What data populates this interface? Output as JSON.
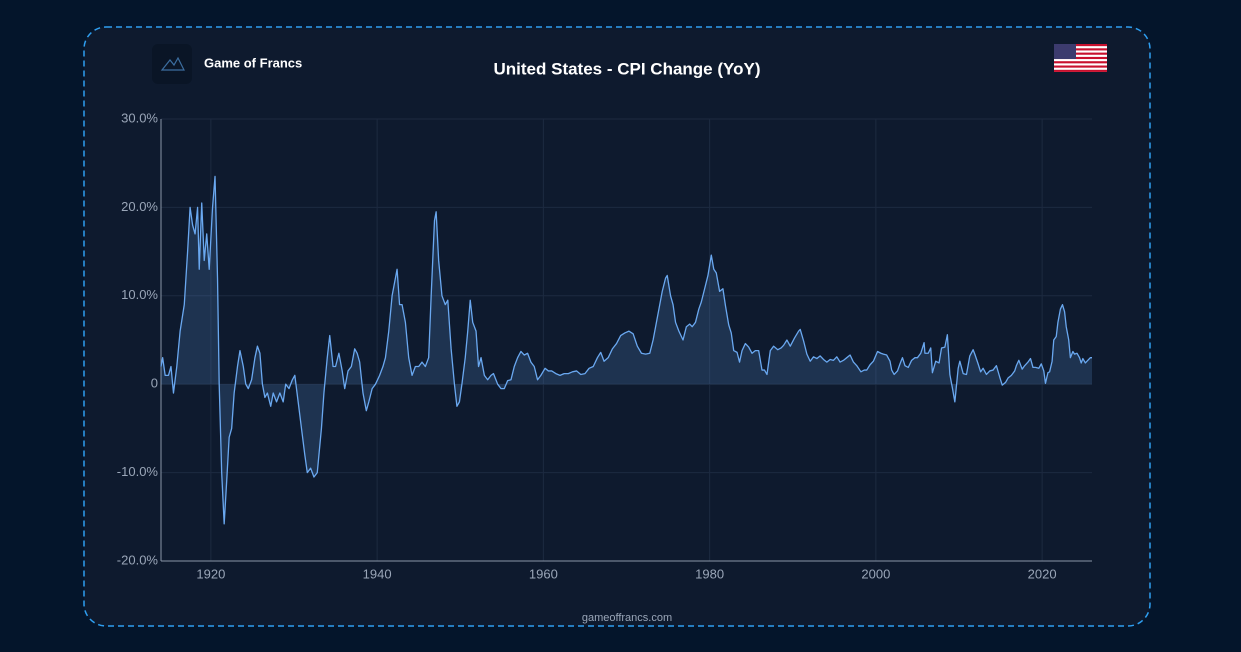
{
  "brand": "Game of Francs",
  "footer": "gameoffrancs.com",
  "chart_data": {
    "type": "area",
    "title": "United States - CPI Change (YoY)",
    "xlim": [
      1914,
      2026
    ],
    "xticks": [
      1920,
      1940,
      1960,
      1980,
      2000,
      2020
    ],
    "ylim": [
      -20,
      30
    ],
    "yticks": [
      {
        "value": -20,
        "label": "-20.0%"
      },
      {
        "value": -10,
        "label": "-10.0%"
      },
      0,
      {
        "value": 10,
        "label": "10.0%"
      },
      {
        "value": 20,
        "label": "20.0%"
      },
      {
        "value": 30,
        "label": "30.0%"
      }
    ],
    "grid": true,
    "color": "#6aa8f0",
    "x": [
      1914.0,
      1914.2,
      1914.5,
      1914.9,
      1915.2,
      1915.5,
      1915.9,
      1916.3,
      1916.8,
      1917.2,
      1917.5,
      1917.8,
      1918.1,
      1918.4,
      1918.6,
      1918.9,
      1919.2,
      1919.5,
      1919.8,
      1920.2,
      1920.5,
      1920.8,
      1921.0,
      1921.3,
      1921.6,
      1921.9,
      1922.2,
      1922.5,
      1922.8,
      1923.2,
      1923.5,
      1923.9,
      1924.2,
      1924.5,
      1924.9,
      1925.3,
      1925.6,
      1925.9,
      1926.2,
      1926.5,
      1926.8,
      1927.2,
      1927.5,
      1927.9,
      1928.3,
      1928.7,
      1929.0,
      1929.4,
      1929.8,
      1930.1,
      1930.5,
      1930.9,
      1931.3,
      1931.6,
      1932.0,
      1932.4,
      1932.8,
      1933.3,
      1933.6,
      1934.0,
      1934.3,
      1934.7,
      1935.0,
      1935.4,
      1935.8,
      1936.1,
      1936.5,
      1936.9,
      1937.3,
      1937.6,
      1937.9,
      1938.3,
      1938.7,
      1939.0,
      1939.4,
      1939.8,
      1940.3,
      1940.7,
      1941.0,
      1941.4,
      1941.8,
      1942.2,
      1942.4,
      1942.7,
      1943.0,
      1943.4,
      1943.8,
      1944.2,
      1944.6,
      1945.0,
      1945.4,
      1945.8,
      1946.2,
      1946.5,
      1946.9,
      1947.1,
      1947.4,
      1947.8,
      1948.2,
      1948.5,
      1948.9,
      1949.3,
      1949.6,
      1949.9,
      1950.2,
      1950.6,
      1950.9,
      1951.2,
      1951.5,
      1951.9,
      1952.2,
      1952.5,
      1952.9,
      1953.3,
      1953.7,
      1954.0,
      1954.5,
      1954.9,
      1955.3,
      1955.7,
      1956.1,
      1956.5,
      1956.9,
      1957.3,
      1957.7,
      1958.1,
      1958.5,
      1958.9,
      1959.3,
      1959.7,
      1960.2,
      1960.6,
      1961.0,
      1961.5,
      1962.0,
      1962.5,
      1963.0,
      1963.5,
      1964.0,
      1964.5,
      1965.0,
      1965.5,
      1966.0,
      1966.5,
      1966.9,
      1967.3,
      1967.8,
      1968.3,
      1968.8,
      1969.3,
      1969.8,
      1970.3,
      1970.8,
      1971.3,
      1971.8,
      1972.3,
      1972.8,
      1973.2,
      1973.6,
      1973.9,
      1974.3,
      1974.7,
      1974.9,
      1975.3,
      1975.6,
      1975.9,
      1976.3,
      1976.8,
      1977.2,
      1977.6,
      1977.9,
      1978.3,
      1978.7,
      1979.0,
      1979.4,
      1979.8,
      1980.2,
      1980.5,
      1980.8,
      1981.2,
      1981.6,
      1981.9,
      1982.3,
      1982.6,
      1982.9,
      1983.3,
      1983.6,
      1983.9,
      1984.3,
      1984.7,
      1985.1,
      1985.5,
      1985.9,
      1986.3,
      1986.6,
      1986.9,
      1987.3,
      1987.7,
      1988.2,
      1988.6,
      1988.9,
      1989.3,
      1989.7,
      1990.2,
      1990.7,
      1990.9,
      1991.3,
      1991.7,
      1992.1,
      1992.5,
      1992.9,
      1993.3,
      1993.7,
      1994.1,
      1994.5,
      1994.9,
      1995.3,
      1995.7,
      1996.1,
      1996.5,
      1996.9,
      1997.3,
      1997.7,
      1998.2,
      1998.6,
      1998.9,
      1999.3,
      1999.7,
      2000.2,
      2000.6,
      2000.9,
      2001.3,
      2001.7,
      2001.9,
      2002.2,
      2002.6,
      2002.9,
      2003.2,
      2003.5,
      2003.9,
      2004.3,
      2004.7,
      2005.0,
      2005.4,
      2005.8,
      2005.9,
      2006.3,
      2006.6,
      2006.8,
      2007.2,
      2007.6,
      2007.9,
      2008.3,
      2008.6,
      2008.9,
      2009.2,
      2009.5,
      2009.9,
      2010.1,
      2010.5,
      2010.9,
      2011.3,
      2011.7,
      2011.9,
      2012.3,
      2012.6,
      2012.9,
      2013.3,
      2013.7,
      2014.1,
      2014.5,
      2014.9,
      2015.2,
      2015.6,
      2015.9,
      2016.3,
      2016.7,
      2016.9,
      2017.2,
      2017.6,
      2017.9,
      2018.3,
      2018.6,
      2018.9,
      2019.2,
      2019.6,
      2019.9,
      2020.2,
      2020.4,
      2020.7,
      2020.9,
      2021.2,
      2021.4,
      2021.7,
      2021.9,
      2022.2,
      2022.45,
      2022.7,
      2022.9,
      2023.2,
      2023.4,
      2023.7,
      2023.9,
      2024.2,
      2024.5,
      2024.7,
      2024.9,
      2025.2,
      2025.5,
      2025.8,
      2026.0
    ],
    "values": [
      2,
      3,
      1,
      1,
      2,
      -1,
      2,
      6,
      9,
      15,
      20,
      18,
      17,
      20,
      13,
      20.5,
      14,
      17,
      13,
      20,
      23.5,
      12,
      0,
      -10,
      -15.8,
      -11,
      -6,
      -5,
      -1,
      2,
      3.8,
      2,
      0,
      -0.5,
      0.5,
      3,
      4.3,
      3.5,
      0,
      -1.5,
      -1,
      -2.5,
      -1,
      -2,
      -1,
      -2,
      0,
      -0.5,
      0.5,
      1,
      -2,
      -5,
      -8,
      -10,
      -9.5,
      -10.5,
      -10,
      -5,
      -1,
      3,
      5.5,
      2,
      2,
      3.5,
      1.5,
      -0.5,
      1.5,
      2,
      4,
      3.5,
      2.5,
      -1,
      -3,
      -2,
      -0.5,
      0,
      1,
      2,
      3,
      6,
      10,
      12,
      13,
      9,
      9,
      7,
      3,
      1,
      2,
      2,
      2.5,
      2,
      3,
      10,
      18.5,
      19.5,
      14,
      10,
      9,
      9.5,
      4,
      0,
      -2.5,
      -2,
      0,
      3,
      6,
      9.5,
      7,
      6,
      2,
      3,
      1,
      0.5,
      1,
      1.2,
      0,
      -0.5,
      -0.5,
      0.4,
      0.5,
      2,
      3,
      3.7,
      3.3,
      3.5,
      2.5,
      2,
      0.5,
      1,
      1.8,
      1.5,
      1.5,
      1.2,
      1,
      1.2,
      1.2,
      1.4,
      1.5,
      1.1,
      1.2,
      1.8,
      2,
      3,
      3.6,
      2.6,
      3,
      4,
      4.6,
      5.5,
      5.8,
      6,
      5.7,
      4.3,
      3.5,
      3.4,
      3.5,
      5,
      7,
      8.5,
      10.5,
      12,
      12.3,
      10,
      9,
      7,
      6,
      5,
      6.5,
      6.8,
      6.5,
      7,
      8.5,
      9.3,
      10.8,
      12.3,
      14.6,
      13,
      12.6,
      10.5,
      10.8,
      8.9,
      6.7,
      5.8,
      3.8,
      3.6,
      2.5,
      3.8,
      4.6,
      4.2,
      3.5,
      3.8,
      3.8,
      1.6,
      1.6,
      1.1,
      3.8,
      4.3,
      3.9,
      4.1,
      4.4,
      5,
      4.3,
      5.2,
      6,
      6.2,
      4.9,
      3.4,
      2.6,
      3.1,
      2.9,
      3.2,
      2.8,
      2.5,
      2.8,
      2.7,
      3.1,
      2.5,
      2.7,
      3,
      3.3,
      2.5,
      2.1,
      1.4,
      1.6,
      1.6,
      2.2,
      2.6,
      3.7,
      3.5,
      3.4,
      3.3,
      2.6,
      1.6,
      1.1,
      1.5,
      2.3,
      3,
      2.1,
      1.9,
      2.7,
      3,
      3,
      3.5,
      4.7,
      3.5,
      3.5,
      4.1,
      1.3,
      2.6,
      2.4,
      4.1,
      4.2,
      5.6,
      1.1,
      -0.4,
      -2,
      1.8,
      2.6,
      1.2,
      1.1,
      3.2,
      3.9,
      3.4,
      2.3,
      1.4,
      1.8,
      1.1,
      1.5,
      1.6,
      2.1,
      0.8,
      -0.1,
      0.2,
      0.7,
      1,
      1.5,
      2.1,
      2.7,
      1.7,
      2.1,
      2.5,
      2.9,
      1.9,
      1.9,
      1.8,
      2.3,
      1.5,
      0.1,
      1.3,
      1.4,
      2.6,
      5,
      5.4,
      7,
      8.5,
      9,
      8.2,
      6.5,
      5,
      3,
      3.7,
      3.4,
      3.5,
      3,
      2.4,
      2.9,
      2.4,
      2.7,
      3,
      3
    ]
  }
}
